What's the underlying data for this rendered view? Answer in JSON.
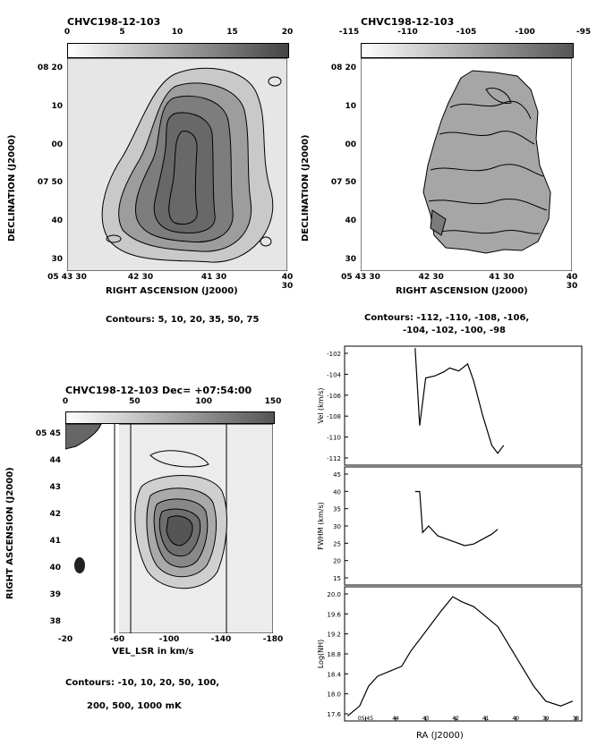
{
  "panel_tl": {
    "title": "CHVC198-12-103",
    "colorbar_ticks": [
      "0",
      "5",
      "10",
      "15",
      "20"
    ],
    "ylabel": "DECLINATION (J2000)",
    "xlabel": "RIGHT ASCENSION (J2000)",
    "yticks": [
      "08 20",
      "10",
      "00",
      "07 50",
      "40",
      "30"
    ],
    "xticks": [
      "05 43 30",
      "42 30",
      "41 30",
      "40 30"
    ],
    "contours": "Contours: 5, 10, 20, 35, 50, 75"
  },
  "panel_tr": {
    "title": "CHVC198-12-103",
    "colorbar_ticks": [
      "-115",
      "-110",
      "-105",
      "-100",
      "-95"
    ],
    "ylabel": "DECLINATION (J2000)",
    "xlabel": "RIGHT ASCENSION (J2000)",
    "yticks": [
      "08 20",
      "10",
      "00",
      "07 50",
      "40",
      "30"
    ],
    "xticks": [
      "05 43 30",
      "42 30",
      "41 30",
      "40 30"
    ],
    "contours_line1": "Contours: -112, -110, -108, -106,",
    "contours_line2": "-104, -102, -100, -98"
  },
  "panel_bl": {
    "title": "CHVC198-12-103   Dec= +07:54:00",
    "colorbar_ticks": [
      "0",
      "50",
      "100",
      "150"
    ],
    "ylabel": "RIGHT ASCENSION (J2000)",
    "xlabel": "VEL_LSR in km/s",
    "yticks": [
      "05 45",
      "44",
      "43",
      "42",
      "41",
      "40",
      "39",
      "38"
    ],
    "xticks": [
      "-20",
      "-60",
      "-100",
      "-140",
      "-180"
    ],
    "contours_line1": "Contours: -10, 10, 20, 50, 100,",
    "contours_line2": "200, 500, 1000 mK"
  },
  "panel_br": {
    "xlabel": "RA (J2000)",
    "xticks": [
      "05 45",
      "44",
      "43",
      "42",
      "41",
      "40",
      "39",
      "38"
    ],
    "vel": {
      "ylabel": "Vel (km/s)",
      "yticks": [
        "-102",
        "-104",
        "-106",
        "-108",
        "-110",
        "-112"
      ]
    },
    "fwhm": {
      "ylabel": "FWHM (km/s)",
      "yticks": [
        "45",
        "40",
        "35",
        "30",
        "25",
        "20",
        "15"
      ]
    },
    "nh": {
      "ylabel": "Log(NH)",
      "yticks": [
        "20.0",
        "19.6",
        "19.2",
        "18.8",
        "18.4",
        "18.0",
        "17.6"
      ]
    }
  },
  "chart_data": [
    {
      "type": "heatmap",
      "title": "CHVC198-12-103",
      "xlabel": "RIGHT ASCENSION (J2000)",
      "ylabel": "DECLINATION (J2000)",
      "colorbar_range": [
        0,
        20
      ],
      "contour_levels": [
        5,
        10,
        20,
        35,
        50,
        75
      ]
    },
    {
      "type": "heatmap",
      "title": "CHVC198-12-103",
      "xlabel": "RIGHT ASCENSION (J2000)",
      "ylabel": "DECLINATION (J2000)",
      "colorbar_range": [
        -115,
        -95
      ],
      "contour_levels": [
        -112,
        -110,
        -108,
        -106,
        -104,
        -102,
        -100,
        -98
      ]
    },
    {
      "type": "heatmap",
      "title": "CHVC198-12-103 Dec= +07:54:00",
      "xlabel": "VEL_LSR in km/s",
      "ylabel": "RIGHT ASCENSION (J2000)",
      "colorbar_range": [
        0,
        170
      ],
      "xlim": [
        -20,
        -190
      ],
      "contour_levels_mK": [
        -10,
        10,
        20,
        50,
        100,
        200,
        500,
        1000
      ]
    },
    {
      "type": "line",
      "xlabel": "RA (J2000)",
      "ylabel": "Vel (km/s)",
      "ylim": [
        -113,
        -101
      ],
      "x": [
        43.35,
        43.2,
        43.0,
        42.7,
        42.4,
        42.2,
        41.9,
        41.6,
        41.4,
        41.1,
        40.8,
        40.6,
        40.4
      ],
      "values": [
        -101.2,
        -109.0,
        -104.2,
        -104.0,
        -103.6,
        -103.2,
        -103.5,
        -102.8,
        -104.5,
        -108.0,
        -111.0,
        -111.8,
        -111.0
      ]
    },
    {
      "type": "line",
      "xlabel": "RA (J2000)",
      "ylabel": "FWHM (km/s)",
      "ylim": [
        12,
        48
      ],
      "x": [
        43.35,
        43.2,
        43.1,
        42.9,
        42.6,
        42.3,
        42.0,
        41.7,
        41.4,
        41.1,
        40.8,
        40.6
      ],
      "values": [
        40.5,
        40.5,
        28.0,
        30.0,
        27.0,
        26.0,
        25.0,
        24.0,
        24.5,
        26.0,
        27.5,
        29.0
      ]
    },
    {
      "type": "line",
      "xlabel": "RA (J2000)",
      "ylabel": "Log(NH)",
      "ylim": [
        17.5,
        20.2
      ],
      "x": [
        45.6,
        45.2,
        44.9,
        44.6,
        44.2,
        43.8,
        43.5,
        43.0,
        42.5,
        42.1,
        41.8,
        41.4,
        41.0,
        40.6,
        40.2,
        39.8,
        39.4,
        39.0,
        38.5,
        38.1
      ],
      "values": [
        17.6,
        17.8,
        18.2,
        18.4,
        18.5,
        18.6,
        18.9,
        19.3,
        19.7,
        20.0,
        19.9,
        19.8,
        19.6,
        19.4,
        19.0,
        18.6,
        18.2,
        17.9,
        17.8,
        17.9
      ]
    }
  ]
}
